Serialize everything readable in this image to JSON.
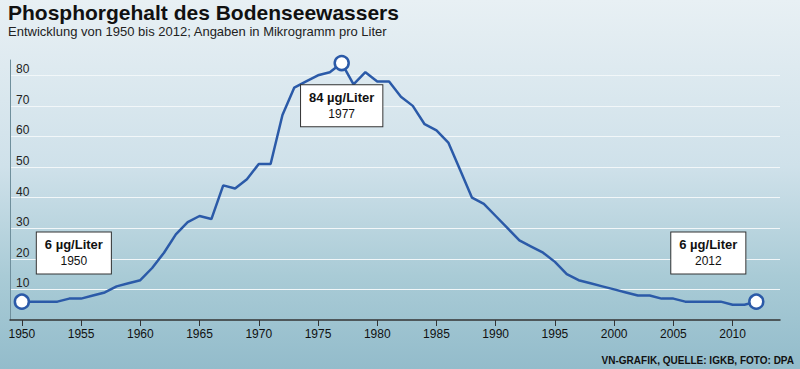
{
  "chart_data": {
    "type": "line",
    "title": "Phosphorgehalt des Bodenseewassers",
    "subtitle": "Entwicklung von 1950 bis 2012; Angaben in Mikrogramm pro Liter",
    "source": "VN-GRAFIK, QUELLE: IGKB, FOTO: DPA",
    "x": [
      1950,
      1951,
      1952,
      1953,
      1954,
      1955,
      1956,
      1957,
      1958,
      1959,
      1960,
      1961,
      1962,
      1963,
      1964,
      1965,
      1966,
      1967,
      1968,
      1969,
      1970,
      1971,
      1972,
      1973,
      1974,
      1975,
      1976,
      1977,
      1978,
      1979,
      1980,
      1981,
      1982,
      1983,
      1984,
      1985,
      1986,
      1987,
      1988,
      1989,
      1990,
      1991,
      1992,
      1993,
      1994,
      1995,
      1996,
      1997,
      1998,
      1999,
      2000,
      2001,
      2002,
      2003,
      2004,
      2005,
      2006,
      2007,
      2008,
      2009,
      2010,
      2011,
      2012
    ],
    "values": [
      6,
      6,
      6,
      6,
      7,
      7,
      8,
      9,
      11,
      12,
      13,
      17,
      22,
      28,
      32,
      34,
      33,
      44,
      43,
      46,
      51,
      51,
      67,
      76,
      78,
      80,
      81,
      84,
      77,
      81,
      78,
      78,
      73,
      70,
      64,
      62,
      58,
      49,
      40,
      38,
      34,
      30,
      26,
      24,
      22,
      19,
      15,
      13,
      12,
      11,
      10,
      9,
      8,
      8,
      7,
      7,
      6,
      6,
      6,
      6,
      5,
      5,
      6
    ],
    "color": "#2b5aa8",
    "xlim": [
      1949,
      2014
    ],
    "xticks": [
      1950,
      1955,
      1960,
      1965,
      1970,
      1975,
      1980,
      1985,
      1990,
      1995,
      2000,
      2005,
      2010
    ],
    "ylim": [
      0,
      85
    ],
    "yticks": [
      10,
      20,
      30,
      40,
      50,
      60,
      70,
      80
    ],
    "grid": true,
    "annotations": [
      {
        "text": "6 µg/Liter",
        "sub": "1950",
        "x": 1950,
        "y": 6
      },
      {
        "text": "84 µg/Liter",
        "sub": "1977",
        "x": 1977,
        "y": 84
      },
      {
        "text": "6 µg/Liter",
        "sub": "2012",
        "x": 2012,
        "y": 6
      }
    ]
  }
}
